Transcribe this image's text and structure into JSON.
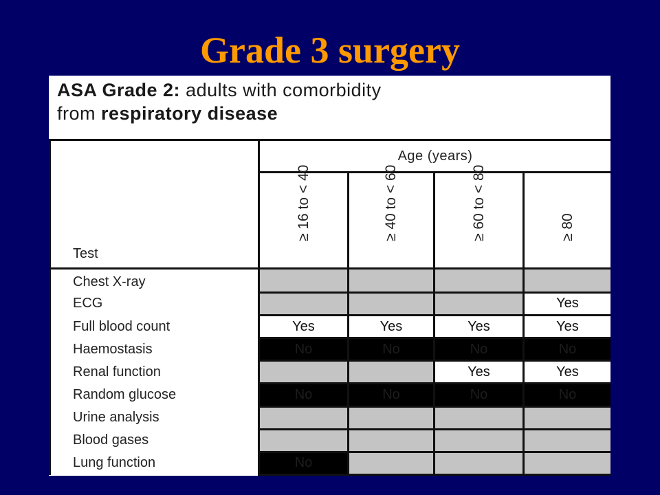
{
  "slide": {
    "title": "Grade 3 surgery"
  },
  "document": {
    "heading_line1_prefix": "ASA Grade 2:",
    "heading_line1_rest": " adults with comorbidity",
    "heading_line2_prefix": "from ",
    "heading_line2_bold": "respiratory disease"
  },
  "table": {
    "test_header": "Test",
    "age_header": "Age (years)",
    "age_bands": [
      "≥ 16 to < 40",
      "≥ 40 to < 60",
      "≥ 60 to < 80",
      "≥ 80"
    ],
    "rows": [
      {
        "test": "Chest X-ray",
        "cells": [
          {
            "kind": "grey",
            "text": ""
          },
          {
            "kind": "grey",
            "text": ""
          },
          {
            "kind": "grey",
            "text": ""
          },
          {
            "kind": "grey",
            "text": ""
          }
        ]
      },
      {
        "test": "ECG",
        "cells": [
          {
            "kind": "grey",
            "text": ""
          },
          {
            "kind": "grey",
            "text": ""
          },
          {
            "kind": "grey",
            "text": ""
          },
          {
            "kind": "yes",
            "text": "Yes"
          }
        ]
      },
      {
        "test": "Full blood count",
        "cells": [
          {
            "kind": "yes",
            "text": "Yes"
          },
          {
            "kind": "yes",
            "text": "Yes"
          },
          {
            "kind": "yes",
            "text": "Yes"
          },
          {
            "kind": "yes",
            "text": "Yes"
          }
        ]
      },
      {
        "test": "Haemostasis",
        "cells": [
          {
            "kind": "no",
            "text": "No"
          },
          {
            "kind": "no",
            "text": "No"
          },
          {
            "kind": "no",
            "text": "No"
          },
          {
            "kind": "no",
            "text": "No"
          }
        ]
      },
      {
        "test": "Renal function",
        "cells": [
          {
            "kind": "grey",
            "text": ""
          },
          {
            "kind": "grey",
            "text": ""
          },
          {
            "kind": "yes",
            "text": "Yes"
          },
          {
            "kind": "yes",
            "text": "Yes"
          }
        ]
      },
      {
        "test": "Random glucose",
        "cells": [
          {
            "kind": "no",
            "text": "No"
          },
          {
            "kind": "no",
            "text": "No"
          },
          {
            "kind": "no",
            "text": "No"
          },
          {
            "kind": "no",
            "text": "No"
          }
        ]
      },
      {
        "test": "Urine analysis",
        "cells": [
          {
            "kind": "grey",
            "text": ""
          },
          {
            "kind": "grey",
            "text": ""
          },
          {
            "kind": "grey",
            "text": ""
          },
          {
            "kind": "grey",
            "text": ""
          }
        ]
      },
      {
        "test": "Blood gases",
        "cells": [
          {
            "kind": "grey",
            "text": ""
          },
          {
            "kind": "grey",
            "text": ""
          },
          {
            "kind": "grey",
            "text": ""
          },
          {
            "kind": "grey",
            "text": ""
          }
        ]
      },
      {
        "test": "Lung function",
        "cells": [
          {
            "kind": "no",
            "text": "No"
          },
          {
            "kind": "grey",
            "text": ""
          },
          {
            "kind": "grey",
            "text": ""
          },
          {
            "kind": "grey",
            "text": ""
          }
        ]
      }
    ]
  },
  "colors": {
    "slide_background": "#000066",
    "title": "#FF9900",
    "grey_cell": "#c4c4c4",
    "no_cell": "#000000",
    "yes_cell": "#ffffff"
  }
}
